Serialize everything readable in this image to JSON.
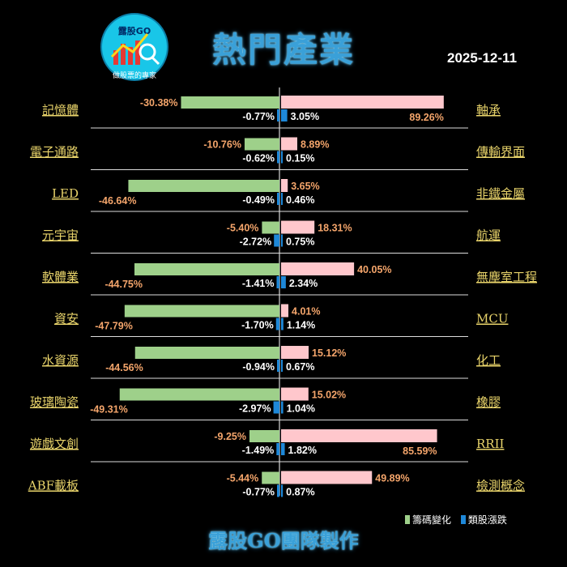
{
  "header": {
    "logo_text": "露股GO",
    "logo_subtext": "做股票的專家",
    "title": "熱門產業",
    "date": "2025-12-11"
  },
  "colors": {
    "chip_change": "#9ed08a",
    "stock_change_bar": "#1e88d8",
    "right_chip_bar": "#ffc7cc",
    "left_label": "#e8d36a",
    "positive_text": "#f4a56b",
    "negative_text": "#ffffff",
    "title_blue": "#3aa0d8"
  },
  "legend": {
    "chip_change": "籌碼變化",
    "stock_change": "類股漲跌"
  },
  "footer": "露股GO團隊製作",
  "chart_data": {
    "type": "bar",
    "title": "熱門產業",
    "series": [
      {
        "name": "籌碼變化"
      },
      {
        "name": "類股漲跌"
      }
    ],
    "left": [
      {
        "category": "記憶體",
        "chip": "-30.38%",
        "chip_value": -30.38,
        "stock": "-0.77%",
        "stock_value": -0.77
      },
      {
        "category": "電子通路",
        "chip": "-10.76%",
        "chip_value": -10.76,
        "stock": "-0.62%",
        "stock_value": -0.62
      },
      {
        "category": "LED",
        "chip": "-46.64%",
        "chip_value": -46.64,
        "stock": "-0.49%",
        "stock_value": -0.49
      },
      {
        "category": "元宇宙",
        "chip": "-5.40%",
        "chip_value": -5.4,
        "stock": "-2.72%",
        "stock_value": -2.72
      },
      {
        "category": "軟體業",
        "chip": "-44.75%",
        "chip_value": -44.75,
        "stock": "-1.41%",
        "stock_value": -1.41
      },
      {
        "category": "資安",
        "chip": "-47.79%",
        "chip_value": -47.79,
        "stock": "-1.70%",
        "stock_value": -1.7
      },
      {
        "category": "水資源",
        "chip": "-44.56%",
        "chip_value": -44.56,
        "stock": "-0.94%",
        "stock_value": -0.94
      },
      {
        "category": "玻璃陶瓷",
        "chip": "-49.31%",
        "chip_value": -49.31,
        "stock": "-2.97%",
        "stock_value": -2.97
      },
      {
        "category": "遊戲文創",
        "chip": "-9.25%",
        "chip_value": -9.25,
        "stock": "-1.49%",
        "stock_value": -1.49
      },
      {
        "category": "ABF載板",
        "chip": "-5.44%",
        "chip_value": -5.44,
        "stock": "-0.77%",
        "stock_value": -0.77
      }
    ],
    "right": [
      {
        "category": "軸承",
        "chip": "89.26%",
        "chip_value": 89.26,
        "stock": "3.05%",
        "stock_value": 3.05
      },
      {
        "category": "傳輸界面",
        "chip": "8.89%",
        "chip_value": 8.89,
        "stock": "0.15%",
        "stock_value": 0.15
      },
      {
        "category": "非鐵金屬",
        "chip": "3.65%",
        "chip_value": 3.65,
        "stock": "0.46%",
        "stock_value": 0.46
      },
      {
        "category": "航運",
        "chip": "18.31%",
        "chip_value": 18.31,
        "stock": "0.75%",
        "stock_value": 0.75
      },
      {
        "category": "無塵室工程",
        "chip": "40.05%",
        "chip_value": 40.05,
        "stock": "2.34%",
        "stock_value": 2.34
      },
      {
        "category": "MCU",
        "chip": "4.01%",
        "chip_value": 4.01,
        "stock": "1.14%",
        "stock_value": 1.14
      },
      {
        "category": "化工",
        "chip": "15.12%",
        "chip_value": 15.12,
        "stock": "0.67%",
        "stock_value": 0.67
      },
      {
        "category": "橡膠",
        "chip": "15.02%",
        "chip_value": 15.02,
        "stock": "1.04%",
        "stock_value": 1.04
      },
      {
        "category": "RRII",
        "chip": "85.59%",
        "chip_value": 85.59,
        "stock": "1.82%",
        "stock_value": 1.82
      },
      {
        "category": "檢測概念",
        "chip": "49.89%",
        "chip_value": 49.89,
        "stock": "0.87%",
        "stock_value": 0.87
      }
    ]
  }
}
